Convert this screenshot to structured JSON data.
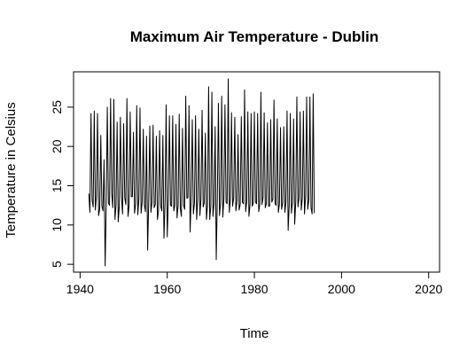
{
  "chart_data": {
    "type": "line",
    "title": "Maximum Air Temperature - Dublin",
    "xlabel": "Time",
    "ylabel": "Temperature in Celsius",
    "xlim": [
      1938.5,
      2022.5
    ],
    "ylim": [
      4.0,
      29.5
    ],
    "x_ticks": [
      1940,
      1960,
      1980,
      2000,
      2020
    ],
    "x_tick_labels": [
      "1940",
      "1960",
      "1980",
      "2000",
      "2020"
    ],
    "y_ticks": [
      5,
      10,
      15,
      20,
      25
    ],
    "y_tick_labels": [
      "5",
      "10",
      "15",
      "20",
      "25"
    ],
    "grid": false,
    "legend": "none",
    "series": [
      {
        "start_year": 1942,
        "values": [
          14.0,
          11.6,
          24.2,
          13.2,
          12.3,
          24.5,
          11.9,
          13.6,
          24.2,
          11.2,
          12.0,
          21.4,
          12.4,
          11.8,
          18.3,
          4.8,
          12.6,
          25.0,
          12.8,
          12.5,
          26.1,
          14.0,
          12.2,
          26.0,
          10.7,
          12.5,
          23.1,
          10.4,
          12.4,
          23.7,
          13.5,
          11.4,
          22.9,
          13.4,
          12.6,
          26.1,
          11.1,
          12.5,
          24.4,
          13.6,
          13.6,
          21.8,
          11.5,
          12.7,
          25.2,
          11.3,
          13.4,
          24.9,
          11.5,
          12.9,
          22.2,
          12.6,
          11.7,
          21.3,
          6.8,
          13.1,
          22.6,
          11.6,
          12.9,
          22.7,
          12.2,
          12.6,
          21.3,
          10.7,
          11.8,
          22.0,
          12.4,
          11.8,
          21.4,
          8.3,
          12.8,
          25.3,
          8.5,
          13.1,
          23.9,
          12.5,
          12.4,
          23.9,
          11.8,
          12.5,
          22.8,
          10.9,
          12.5,
          24.1,
          12.1,
          11.1,
          22.3,
          12.5,
          12.0,
          26.4,
          13.4,
          13.5,
          25.2,
          9.1,
          13.5,
          23.4,
          11.4,
          12.8,
          23.9,
          10.7,
          13.2,
          22.2,
          11.2,
          13.4,
          24.6,
          12.3,
          12.8,
          21.7,
          10.7,
          12.6,
          27.6,
          10.7,
          12.4,
          26.9,
          11.1,
          12.7,
          22.5,
          5.6,
          13.5,
          25.5,
          11.2,
          12.8,
          26.4,
          11.0,
          13.3,
          25.3,
          12.9,
          12.7,
          28.6,
          11.6,
          13.4,
          24.3,
          12.4,
          13.4,
          23.7,
          11.8,
          13.0,
          21.5,
          11.9,
          12.6,
          23.8,
          12.9,
          12.7,
          27.2,
          11.7,
          13.0,
          24.4,
          11.1,
          12.6,
          24.2,
          12.4,
          12.7,
          24.4,
          12.9,
          12.7,
          24.2,
          11.7,
          12.7,
          26.9,
          12.6,
          13.5,
          24.3,
          12.2,
          12.7,
          23.0,
          12.4,
          12.4,
          23.4,
          12.9,
          13.3,
          25.9,
          12.7,
          12.5,
          23.5,
          11.6,
          12.7,
          22.4,
          12.0,
          12.8,
          22.5,
          11.6,
          12.9,
          24.5,
          9.3,
          12.6,
          24.2,
          11.5,
          12.9,
          23.5,
          10.1,
          13.0,
          26.3,
          12.3,
          13.4,
          24.4,
          11.9,
          13.4,
          24.5,
          11.4,
          13.6,
          26.3,
          12.0,
          13.2,
          26.3,
          12.2,
          11.4,
          26.7,
          11.5
        ]
      }
    ]
  }
}
